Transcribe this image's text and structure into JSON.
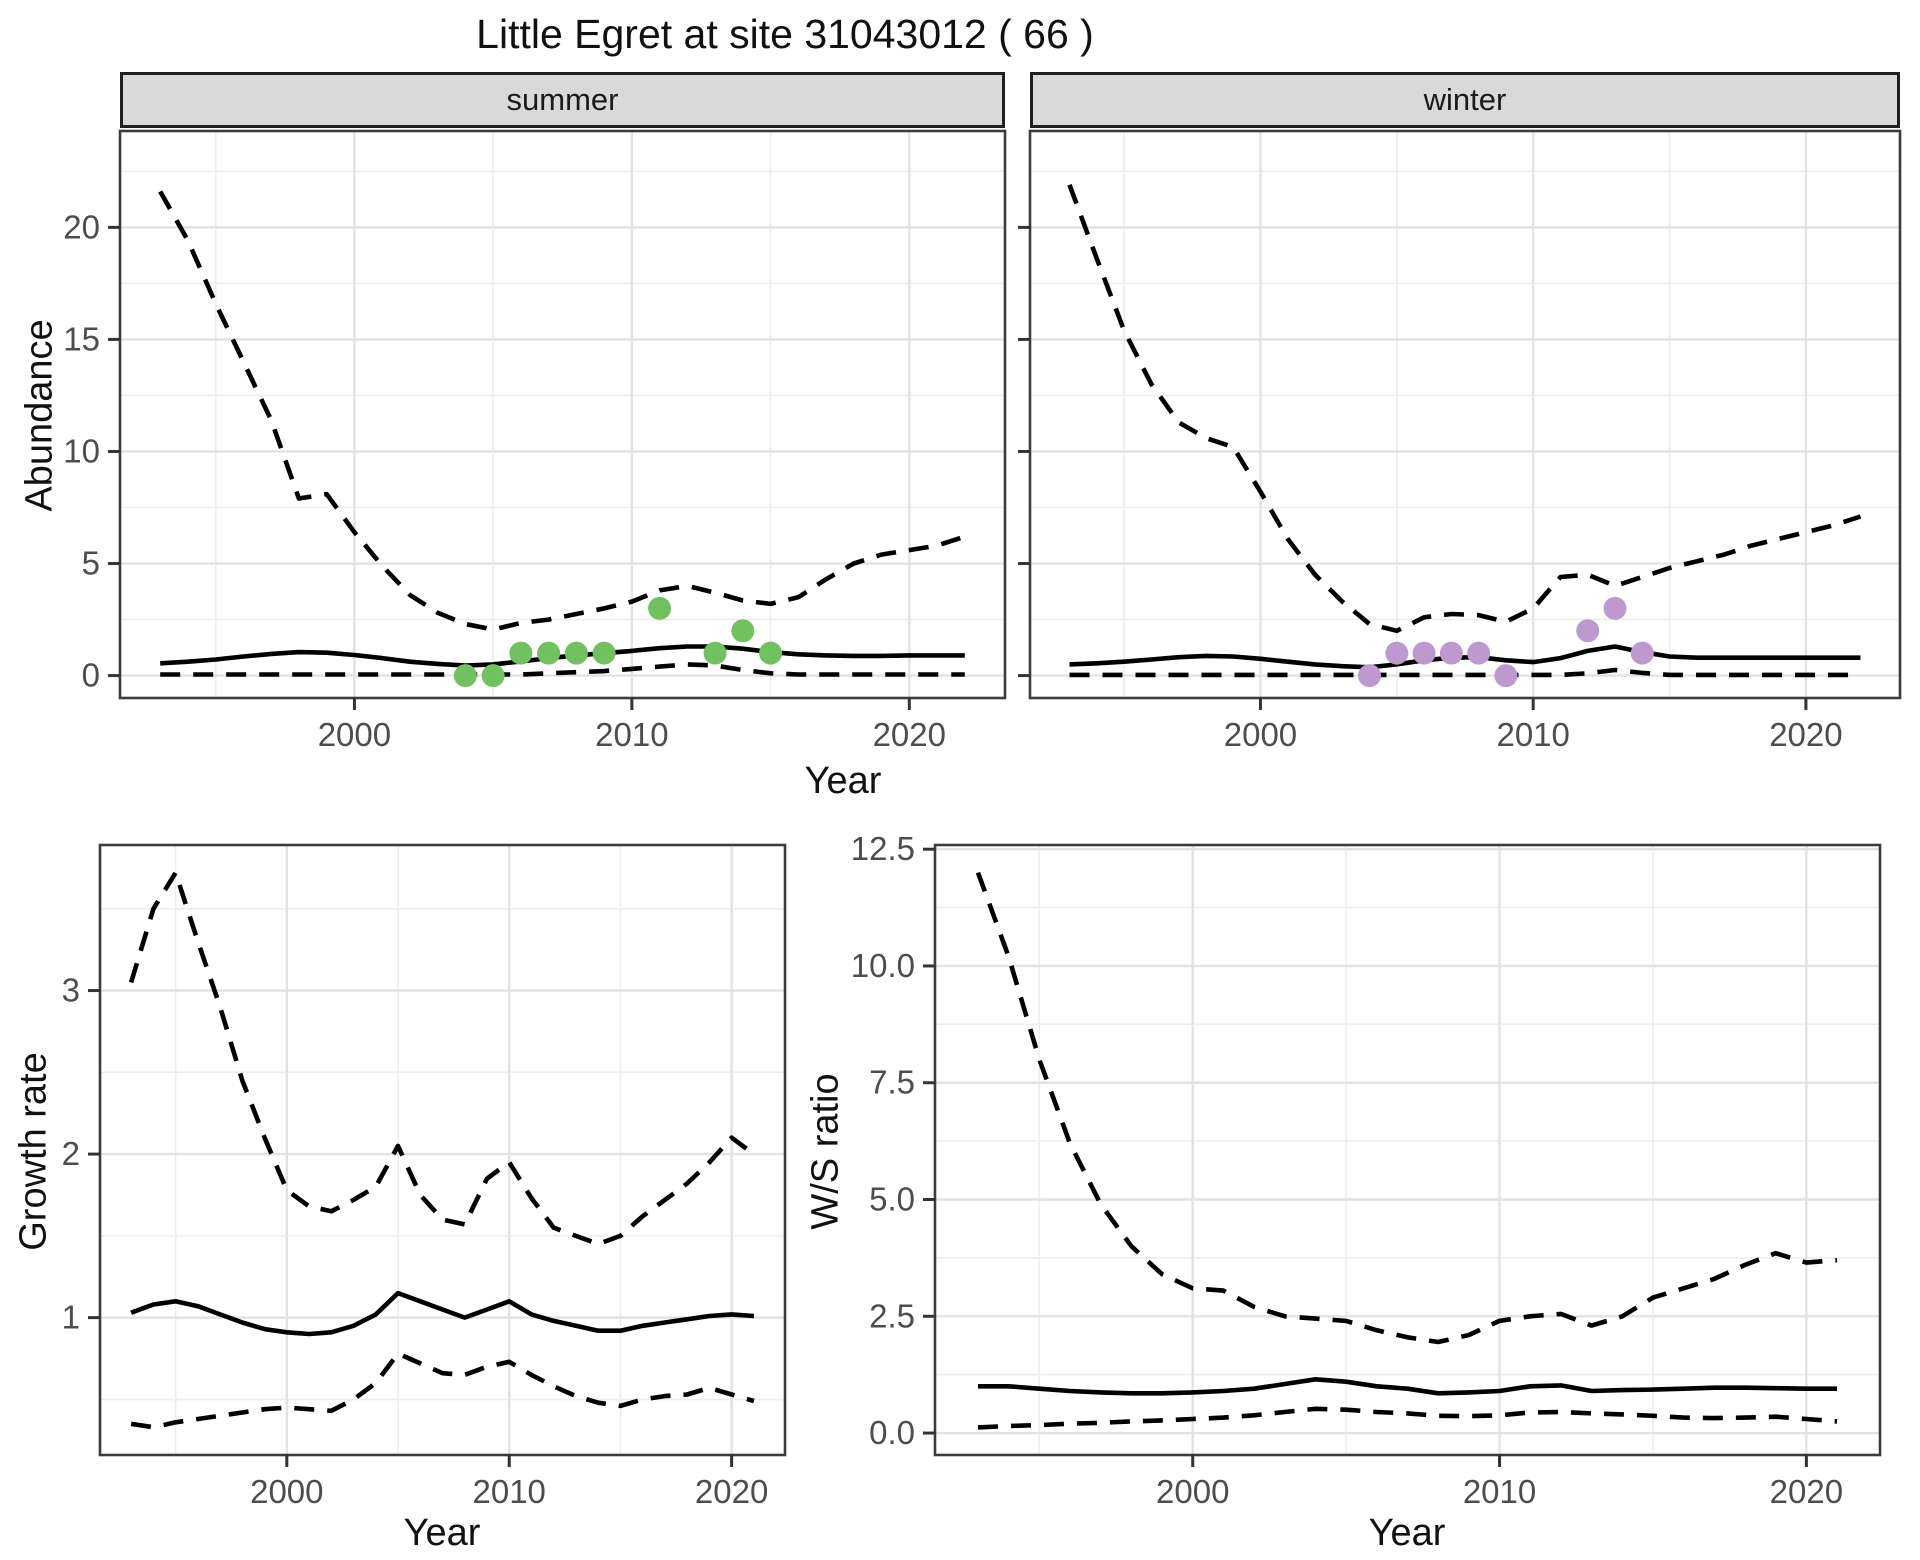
{
  "title": "Little Egret at site 31043012 ( 66 )",
  "colors": {
    "line": "#000000",
    "summer_points": "#72C160",
    "winter_points": "#BE99D0",
    "strip_bg": "#D9D9D9",
    "grid_major": "#E2E2E2",
    "grid_minor": "#EDEDED",
    "panel_border": "#3C3C3C",
    "tick_text": "#4D4D4D",
    "tick_mark": "#333333"
  },
  "chart_data": [
    {
      "id": "summer-abundance",
      "type": "line",
      "facet_label": "summer",
      "xlabel": "Year",
      "ylabel": "Abundance",
      "xlim": [
        1991.55,
        2023.45
      ],
      "ylim": [
        -1.0,
        24.3
      ],
      "x_ticks": [
        {
          "value": 2000,
          "label": "2000"
        },
        {
          "value": 2010,
          "label": "2010"
        },
        {
          "value": 2020,
          "label": "2020"
        }
      ],
      "x_minor": [
        1995,
        2005,
        2015
      ],
      "y_ticks": [
        {
          "value": 0,
          "label": "0"
        },
        {
          "value": 5,
          "label": "5"
        },
        {
          "value": 10,
          "label": "10"
        },
        {
          "value": 15,
          "label": "15"
        },
        {
          "value": 20,
          "label": "20"
        }
      ],
      "y_minor": [
        2.5,
        7.5,
        12.5,
        17.5,
        22.5
      ],
      "x": [
        1993,
        1994,
        1995,
        1996,
        1997,
        1998,
        1999,
        2000,
        2001,
        2002,
        2003,
        2004,
        2005,
        2006,
        2007,
        2008,
        2009,
        2010,
        2011,
        2012,
        2013,
        2014,
        2015,
        2016,
        2017,
        2018,
        2019,
        2020,
        2021,
        2022
      ],
      "series": [
        {
          "name": "upper_ci",
          "style": "dashed",
          "values": [
            21.6,
            19.4,
            16.6,
            14.0,
            11.4,
            7.9,
            8.1,
            6.4,
            4.9,
            3.6,
            2.8,
            2.3,
            2.05,
            2.35,
            2.5,
            2.75,
            3.0,
            3.3,
            3.8,
            4.0,
            3.7,
            3.35,
            3.2,
            3.5,
            4.3,
            5.0,
            5.4,
            5.6,
            5.8,
            6.2
          ]
        },
        {
          "name": "mean",
          "style": "solid",
          "values": [
            0.55,
            0.62,
            0.72,
            0.85,
            0.97,
            1.05,
            1.02,
            0.92,
            0.78,
            0.62,
            0.52,
            0.45,
            0.5,
            0.63,
            0.78,
            0.9,
            1.0,
            1.1,
            1.22,
            1.3,
            1.3,
            1.2,
            1.05,
            0.95,
            0.9,
            0.88,
            0.88,
            0.9,
            0.9,
            0.9
          ]
        },
        {
          "name": "lower_ci",
          "style": "dashed",
          "values": [
            0.05,
            0.05,
            0.05,
            0.05,
            0.05,
            0.05,
            0.05,
            0.05,
            0.05,
            0.05,
            0.05,
            0.05,
            0.05,
            0.05,
            0.1,
            0.15,
            0.2,
            0.3,
            0.4,
            0.5,
            0.45,
            0.25,
            0.1,
            0.05,
            0.05,
            0.05,
            0.05,
            0.05,
            0.05,
            0.05
          ]
        }
      ],
      "points": {
        "name": "observed-counts-summer",
        "color": "#72C160",
        "data": [
          [
            2004,
            0
          ],
          [
            2005,
            0
          ],
          [
            2006,
            1
          ],
          [
            2007,
            1
          ],
          [
            2008,
            1
          ],
          [
            2009,
            1
          ],
          [
            2011,
            3
          ],
          [
            2013,
            1
          ],
          [
            2014,
            2
          ],
          [
            2015,
            1
          ]
        ]
      }
    },
    {
      "id": "winter-abundance",
      "type": "line",
      "facet_label": "winter",
      "xlabel": "Year",
      "ylabel": "Abundance",
      "xlim": [
        1991.55,
        2023.45
      ],
      "ylim": [
        -1.0,
        24.3
      ],
      "x_ticks": [
        {
          "value": 2000,
          "label": "2000"
        },
        {
          "value": 2010,
          "label": "2010"
        },
        {
          "value": 2020,
          "label": "2020"
        }
      ],
      "x_minor": [
        1995,
        2005,
        2015
      ],
      "y_ticks": [
        {
          "value": 0,
          "label": "0"
        },
        {
          "value": 5,
          "label": "5"
        },
        {
          "value": 10,
          "label": "10"
        },
        {
          "value": 15,
          "label": "15"
        },
        {
          "value": 20,
          "label": "20"
        }
      ],
      "y_minor": [
        2.5,
        7.5,
        12.5,
        17.5,
        22.5
      ],
      "x": [
        1993,
        1994,
        1995,
        1996,
        1997,
        1998,
        1999,
        2000,
        2001,
        2002,
        2003,
        2004,
        2005,
        2006,
        2007,
        2008,
        2009,
        2010,
        2011,
        2012,
        2013,
        2014,
        2015,
        2016,
        2017,
        2018,
        2019,
        2020,
        2021,
        2022
      ],
      "series": [
        {
          "name": "upper_ci",
          "style": "dashed",
          "values": [
            21.9,
            18.6,
            15.4,
            13.0,
            11.3,
            10.6,
            10.2,
            8.2,
            6.1,
            4.5,
            3.3,
            2.3,
            2.0,
            2.6,
            2.75,
            2.7,
            2.4,
            3.0,
            4.4,
            4.5,
            4.0,
            4.4,
            4.8,
            5.1,
            5.4,
            5.8,
            6.1,
            6.4,
            6.7,
            7.1
          ]
        },
        {
          "name": "mean",
          "style": "solid",
          "values": [
            0.5,
            0.55,
            0.62,
            0.72,
            0.82,
            0.88,
            0.85,
            0.75,
            0.62,
            0.5,
            0.42,
            0.37,
            0.5,
            0.68,
            0.8,
            0.82,
            0.68,
            0.6,
            0.78,
            1.1,
            1.3,
            1.05,
            0.85,
            0.8,
            0.8,
            0.8,
            0.8,
            0.8,
            0.8,
            0.8
          ]
        },
        {
          "name": "lower_ci",
          "style": "dashed",
          "values": [
            0.03,
            0.03,
            0.03,
            0.03,
            0.03,
            0.03,
            0.03,
            0.03,
            0.03,
            0.03,
            0.03,
            0.03,
            0.03,
            0.03,
            0.03,
            0.03,
            0.03,
            0.03,
            0.03,
            0.1,
            0.25,
            0.12,
            0.03,
            0.03,
            0.03,
            0.03,
            0.03,
            0.03,
            0.03,
            0.03
          ]
        }
      ],
      "points": {
        "name": "observed-counts-winter",
        "color": "#BE99D0",
        "data": [
          [
            2004,
            0
          ],
          [
            2005,
            1
          ],
          [
            2006,
            1
          ],
          [
            2007,
            1
          ],
          [
            2008,
            1
          ],
          [
            2009,
            0
          ],
          [
            2012,
            2
          ],
          [
            2013,
            3
          ],
          [
            2014,
            1
          ]
        ]
      }
    },
    {
      "id": "growth-rate",
      "type": "line",
      "facet_label": "",
      "xlabel": "Year",
      "ylabel": "Growth rate",
      "xlim": [
        1991.6,
        2022.4
      ],
      "ylim": [
        0.16,
        3.89
      ],
      "x_ticks": [
        {
          "value": 2000,
          "label": "2000"
        },
        {
          "value": 2010,
          "label": "2010"
        },
        {
          "value": 2020,
          "label": "2020"
        }
      ],
      "x_minor": [
        1995,
        2005,
        2015
      ],
      "y_ticks": [
        {
          "value": 1,
          "label": "1"
        },
        {
          "value": 2,
          "label": "2"
        },
        {
          "value": 3,
          "label": "3"
        }
      ],
      "y_minor": [
        0.5,
        1.5,
        2.5,
        3.5
      ],
      "x": [
        1993,
        1994,
        1995,
        1996,
        1997,
        1998,
        1999,
        2000,
        2001,
        2002,
        2003,
        2004,
        2005,
        2006,
        2007,
        2008,
        2009,
        2010,
        2011,
        2012,
        2013,
        2014,
        2015,
        2016,
        2017,
        2018,
        2019,
        2020,
        2021
      ],
      "series": [
        {
          "name": "upper_ci",
          "style": "dashed",
          "values": [
            3.05,
            3.5,
            3.72,
            3.3,
            2.9,
            2.45,
            2.1,
            1.78,
            1.68,
            1.65,
            1.72,
            1.8,
            2.05,
            1.75,
            1.6,
            1.57,
            1.85,
            1.95,
            1.73,
            1.55,
            1.5,
            1.45,
            1.5,
            1.62,
            1.72,
            1.82,
            1.95,
            2.1,
            2.0
          ]
        },
        {
          "name": "mean",
          "style": "solid",
          "values": [
            1.03,
            1.08,
            1.1,
            1.07,
            1.02,
            0.97,
            0.93,
            0.91,
            0.9,
            0.91,
            0.95,
            1.02,
            1.15,
            1.1,
            1.05,
            1.0,
            1.05,
            1.1,
            1.02,
            0.98,
            0.95,
            0.92,
            0.92,
            0.95,
            0.97,
            0.99,
            1.01,
            1.02,
            1.01
          ]
        },
        {
          "name": "lower_ci",
          "style": "dashed",
          "values": [
            0.35,
            0.33,
            0.36,
            0.38,
            0.4,
            0.42,
            0.44,
            0.45,
            0.44,
            0.43,
            0.5,
            0.6,
            0.78,
            0.72,
            0.66,
            0.65,
            0.7,
            0.73,
            0.65,
            0.58,
            0.52,
            0.48,
            0.46,
            0.5,
            0.52,
            0.53,
            0.57,
            0.53,
            0.49
          ]
        }
      ],
      "points": null
    },
    {
      "id": "ws-ratio",
      "type": "line",
      "facet_label": "",
      "xlabel": "Year",
      "ylabel": "W/S ratio",
      "xlim": [
        1991.6,
        2022.4
      ],
      "ylim": [
        -0.47,
        12.59
      ],
      "x_ticks": [
        {
          "value": 2000,
          "label": "2000"
        },
        {
          "value": 2010,
          "label": "2010"
        },
        {
          "value": 2020,
          "label": "2020"
        }
      ],
      "x_minor": [
        1995,
        2005,
        2015
      ],
      "y_ticks": [
        {
          "value": 0,
          "label": "0.0"
        },
        {
          "value": 2.5,
          "label": "2.5"
        },
        {
          "value": 5,
          "label": "5.0"
        },
        {
          "value": 7.5,
          "label": "7.5"
        },
        {
          "value": 10,
          "label": "10.0"
        },
        {
          "value": 12.5,
          "label": "12.5"
        }
      ],
      "y_minor": [
        1.25,
        3.75,
        6.25,
        8.75,
        11.25
      ],
      "x": [
        1993,
        1994,
        1995,
        1996,
        1997,
        1998,
        1999,
        2000,
        2001,
        2002,
        2003,
        2004,
        2005,
        2006,
        2007,
        2008,
        2009,
        2010,
        2011,
        2012,
        2013,
        2014,
        2015,
        2016,
        2017,
        2018,
        2019,
        2020,
        2021
      ],
      "series": [
        {
          "name": "upper_ci",
          "style": "dashed",
          "values": [
            12.0,
            10.2,
            8.0,
            6.2,
            4.9,
            4.0,
            3.4,
            3.1,
            3.05,
            2.7,
            2.5,
            2.45,
            2.4,
            2.2,
            2.05,
            1.95,
            2.1,
            2.4,
            2.5,
            2.55,
            2.3,
            2.5,
            2.9,
            3.1,
            3.3,
            3.6,
            3.85,
            3.65,
            3.7
          ]
        },
        {
          "name": "mean",
          "style": "solid",
          "values": [
            1.0,
            1.0,
            0.95,
            0.9,
            0.87,
            0.85,
            0.85,
            0.87,
            0.9,
            0.95,
            1.05,
            1.15,
            1.1,
            1.0,
            0.95,
            0.85,
            0.87,
            0.9,
            1.0,
            1.02,
            0.9,
            0.92,
            0.93,
            0.95,
            0.97,
            0.97,
            0.96,
            0.95,
            0.95
          ]
        },
        {
          "name": "lower_ci",
          "style": "dashed",
          "values": [
            0.12,
            0.15,
            0.17,
            0.2,
            0.22,
            0.25,
            0.27,
            0.3,
            0.33,
            0.38,
            0.45,
            0.52,
            0.5,
            0.45,
            0.42,
            0.37,
            0.36,
            0.38,
            0.44,
            0.45,
            0.42,
            0.4,
            0.37,
            0.33,
            0.32,
            0.33,
            0.35,
            0.3,
            0.25
          ]
        }
      ],
      "points": null
    }
  ]
}
